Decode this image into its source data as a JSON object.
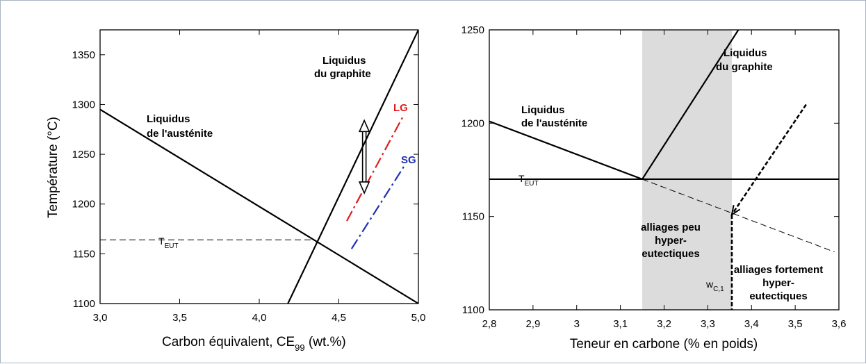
{
  "chart_data": [
    {
      "type": "line",
      "xlabel": "Carbon équivalent, CE",
      "xlabel_sub": "99",
      "xlabel_tail": " (wt.%)",
      "ylabel": "Température (°C)",
      "xlim": [
        3.0,
        5.0
      ],
      "ylim": [
        1100,
        1375
      ],
      "xticks": [
        "3,0",
        "3,5",
        "4,0",
        "4,5",
        "5,0"
      ],
      "xtick_values": [
        3.0,
        3.5,
        4.0,
        4.5,
        5.0
      ],
      "yticks": [
        "1100",
        "1150",
        "1200",
        "1250",
        "1300",
        "1350"
      ],
      "ytick_values": [
        1100,
        1150,
        1200,
        1250,
        1300,
        1350
      ],
      "grid": false,
      "series": [
        {
          "name": "Liquidus de l'austénite",
          "color": "#000000",
          "style": "solid",
          "x": [
            3.0,
            5.0
          ],
          "y": [
            1295,
            1100
          ]
        },
        {
          "name": "Liquidus du graphite",
          "color": "#000000",
          "style": "solid",
          "x": [
            4.18,
            5.0
          ],
          "y": [
            1100,
            1375
          ]
        },
        {
          "name": "LG",
          "color": "#e31a1c",
          "style": "dashdot",
          "x": [
            4.55,
            4.91
          ],
          "y": [
            1183,
            1290
          ]
        },
        {
          "name": "SG",
          "color": "#1f2fb5",
          "style": "dashdot",
          "x": [
            4.58,
            4.91
          ],
          "y": [
            1155,
            1238
          ]
        },
        {
          "name": "T_EUT",
          "color": "#000000",
          "style": "dashed",
          "x": [
            3.0,
            4.34
          ],
          "y": [
            1164,
            1164
          ]
        }
      ],
      "arrow": {
        "x": 4.66,
        "y_from": 1284,
        "y_to": 1211
      },
      "annotations": {
        "aust_l1": "Liquidus",
        "aust_l2": "de l'austénite",
        "graph_l1": "Liquidus",
        "graph_l2": "du graphite",
        "lg": "LG",
        "sg": "SG",
        "teut_main": "T",
        "teut_sub": "EUT"
      }
    },
    {
      "type": "line",
      "xlabel": "Teneur en carbone (% en poids)",
      "xlim": [
        2.8,
        3.6
      ],
      "ylim": [
        1100,
        1250
      ],
      "xticks": [
        "2,8",
        "2,9",
        "3",
        "3,1",
        "3,2",
        "3,3",
        "3,4",
        "3,5",
        "3,6"
      ],
      "xtick_values": [
        2.8,
        2.9,
        3.0,
        3.1,
        3.2,
        3.3,
        3.4,
        3.5,
        3.6
      ],
      "yticks": [
        "1100",
        "1150",
        "1200",
        "1250"
      ],
      "ytick_values": [
        1100,
        1150,
        1200,
        1250
      ],
      "grid": false,
      "shaded_region": {
        "x": [
          3.15,
          3.355
        ],
        "color": "#dcdcdc"
      },
      "series": [
        {
          "name": "Liquidus de l'austénite",
          "color": "#000000",
          "style": "solid",
          "x": [
            2.8,
            3.15
          ],
          "y": [
            1201,
            1170
          ]
        },
        {
          "name": "Liquidus du graphite",
          "color": "#000000",
          "style": "solid",
          "x": [
            3.15,
            3.37
          ],
          "y": [
            1170,
            1250
          ]
        },
        {
          "name": "T_EUT",
          "color": "#000000",
          "style": "solid",
          "x": [
            2.8,
            3.6
          ],
          "y": [
            1170,
            1170
          ]
        },
        {
          "name": "extension",
          "color": "#000000",
          "style": "dashed",
          "x": [
            3.15,
            3.59
          ],
          "y": [
            1170,
            1131
          ]
        },
        {
          "name": "path",
          "color": "#000000",
          "style": "dotted-bold",
          "x": [
            3.525,
            3.355
          ],
          "y": [
            1210,
            1151
          ]
        },
        {
          "name": "w_C1",
          "color": "#000000",
          "style": "dotted-bold",
          "x": [
            3.355,
            3.355
          ],
          "y": [
            1151,
            1100
          ]
        }
      ],
      "annotations": {
        "aust_l1": "Liquidus",
        "aust_l2": "de l'austénite",
        "graph_l1": "Liquidus",
        "graph_l2": "du graphite",
        "teut_main": "T",
        "teut_sub": "EUT",
        "peu_l1": "alliages peu",
        "peu_l2": "hyper-",
        "peu_l3": "eutectiques",
        "fort_l1": "alliages fortement",
        "fort_l2": "hyper-",
        "fort_l3": "eutectiques",
        "wc_main": "w",
        "wc_sub": "C,1"
      }
    }
  ]
}
